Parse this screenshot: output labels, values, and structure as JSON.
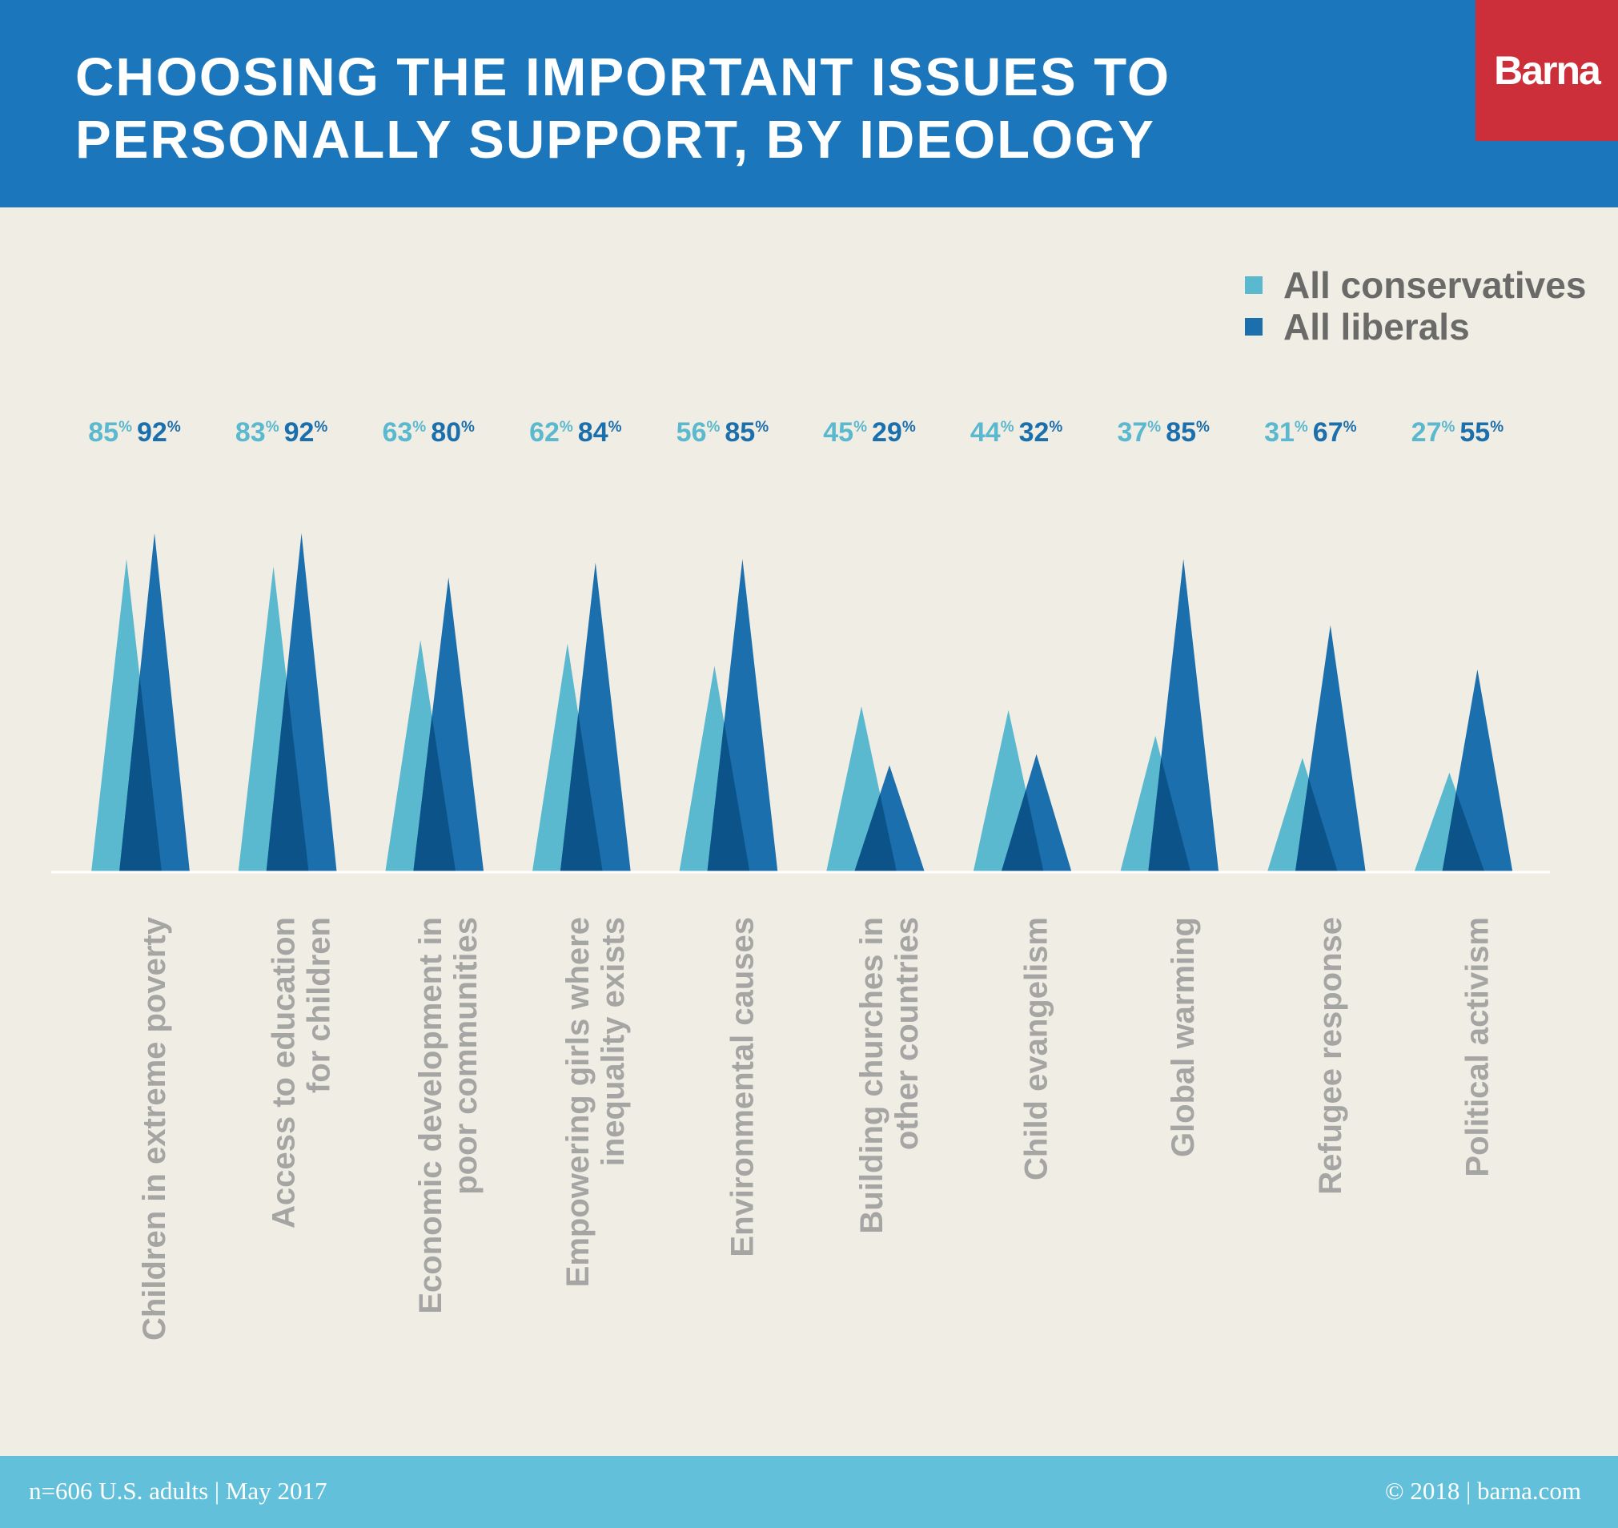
{
  "header": {
    "title_line1": "CHOOSING THE IMPORTANT ISSUES TO",
    "title_line2": "PERSONALLY SUPPORT, BY IDEOLOGY",
    "logo": "Barna"
  },
  "legend": {
    "conservatives": "All conservatives",
    "liberals": "All liberals"
  },
  "colors": {
    "header_bg": "#1b76bb",
    "conservatives": "#5ab8cf",
    "liberals": "#1b6fac",
    "overlap": "#0b5388",
    "logo_bg": "#cd2f3a",
    "footer_bg": "#62c0da",
    "background": "#efede4"
  },
  "footer": {
    "left": "n=606 U.S. adults | May 2017",
    "right": "© 2018 | barna.com"
  },
  "chart_data": {
    "type": "bar",
    "value_suffix": "%",
    "categories": [
      [
        "Children in extreme poverty"
      ],
      [
        "Access to education",
        "for children"
      ],
      [
        "Economic development in",
        "poor communities"
      ],
      [
        "Empowering girls where",
        "inequality exists"
      ],
      [
        "Environmental causes"
      ],
      [
        "Building churches in",
        "other countries"
      ],
      [
        "Child evangelism"
      ],
      [
        "Global warming"
      ],
      [
        "Refugee response"
      ],
      [
        "Political activism"
      ]
    ],
    "series": [
      {
        "name": "All conservatives",
        "values": [
          85,
          83,
          63,
          62,
          56,
          45,
          44,
          37,
          31,
          27
        ]
      },
      {
        "name": "All liberals",
        "values": [
          92,
          92,
          80,
          84,
          85,
          29,
          32,
          85,
          67,
          55
        ]
      }
    ],
    "legend_position": "top-right",
    "grid": false
  }
}
